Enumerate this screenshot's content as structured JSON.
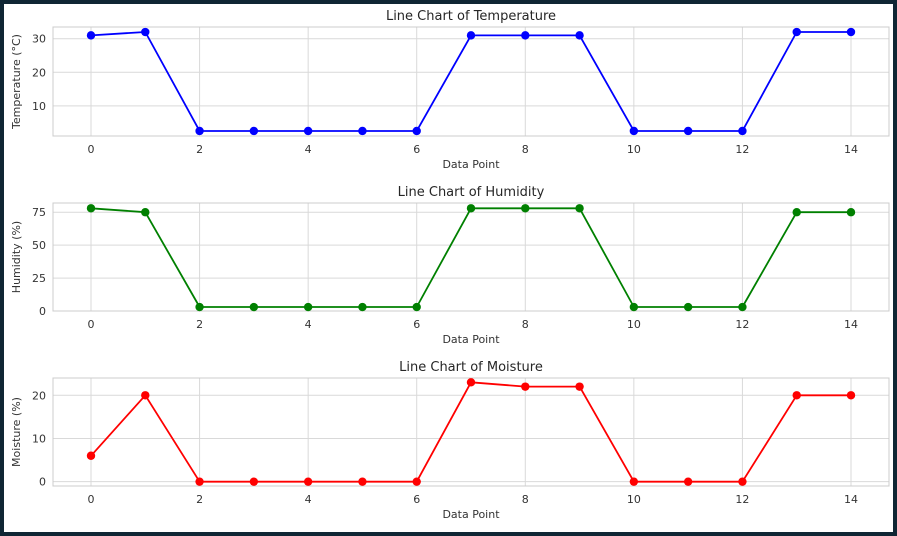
{
  "chart_data": [
    {
      "type": "line",
      "title": "Line Chart of Temperature",
      "xlabel": "Data Point",
      "ylabel": "Temperature (°C)",
      "color": "#0000ff",
      "x": [
        0,
        1,
        2,
        3,
        4,
        5,
        6,
        7,
        8,
        9,
        10,
        11,
        12,
        13,
        14
      ],
      "values": [
        31,
        32,
        2.5,
        2.5,
        2.5,
        2.5,
        2.5,
        31,
        31,
        31,
        2.5,
        2.5,
        2.5,
        32,
        32
      ],
      "xlim": [
        -0.7,
        14.7
      ],
      "ylim": [
        1,
        33.5
      ],
      "xticks": [
        0,
        2,
        4,
        6,
        8,
        10,
        12,
        14
      ],
      "yticks": [
        10,
        20,
        30
      ],
      "grid": true
    },
    {
      "type": "line",
      "title": "Line Chart of Humidity",
      "xlabel": "Data Point",
      "ylabel": "Humidity (%)",
      "color": "#008000",
      "x": [
        0,
        1,
        2,
        3,
        4,
        5,
        6,
        7,
        8,
        9,
        10,
        11,
        12,
        13,
        14
      ],
      "values": [
        78,
        75,
        3,
        3,
        3,
        3,
        3,
        78,
        78,
        78,
        3,
        3,
        3,
        75,
        75
      ],
      "xlim": [
        -0.7,
        14.7
      ],
      "ylim": [
        0,
        82
      ],
      "xticks": [
        0,
        2,
        4,
        6,
        8,
        10,
        12,
        14
      ],
      "yticks": [
        0,
        25,
        50,
        75
      ],
      "grid": true
    },
    {
      "type": "line",
      "title": "Line Chart of Moisture",
      "xlabel": "Data Point",
      "ylabel": "Moisture (%)",
      "color": "#ff0000",
      "x": [
        0,
        1,
        2,
        3,
        4,
        5,
        6,
        7,
        8,
        9,
        10,
        11,
        12,
        13,
        14
      ],
      "values": [
        6,
        20,
        0,
        0,
        0,
        0,
        0,
        23,
        22,
        22,
        0,
        0,
        0,
        20,
        20
      ],
      "xlim": [
        -0.7,
        14.7
      ],
      "ylim": [
        -1,
        24
      ],
      "xticks": [
        0,
        2,
        4,
        6,
        8,
        10,
        12,
        14
      ],
      "yticks": [
        0,
        10,
        20
      ],
      "grid": true
    }
  ]
}
